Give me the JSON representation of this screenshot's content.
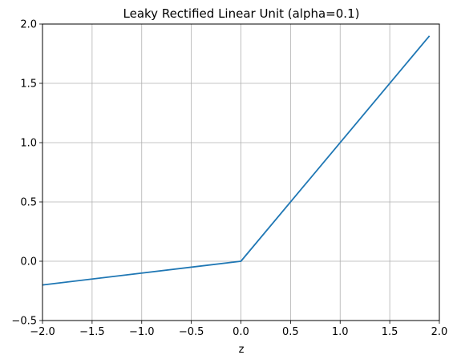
{
  "chart_data": {
    "type": "line",
    "title": "Leaky Rectified Linear Unit (alpha=0.1)",
    "xlabel": "z",
    "ylabel": "",
    "xlim": [
      -2.0,
      2.0
    ],
    "ylim": [
      -0.5,
      2.0
    ],
    "xticks": [
      -2.0,
      -1.5,
      -1.0,
      -0.5,
      0.0,
      0.5,
      1.0,
      1.5,
      2.0
    ],
    "yticks": [
      -0.5,
      0.0,
      0.5,
      1.0,
      1.5,
      2.0
    ],
    "xtick_labels": [
      "−2.0",
      "−1.5",
      "−1.0",
      "−0.5",
      "0.0",
      "0.5",
      "1.0",
      "1.5",
      "2.0"
    ],
    "ytick_labels": [
      "−0.5",
      "0.0",
      "0.5",
      "1.0",
      "1.5",
      "2.0"
    ],
    "grid": true,
    "series": [
      {
        "x": [
          -2.0,
          0.0,
          1.9
        ],
        "y": [
          -0.2,
          0.0,
          1.9
        ],
        "color": "#1f77b4"
      }
    ]
  }
}
